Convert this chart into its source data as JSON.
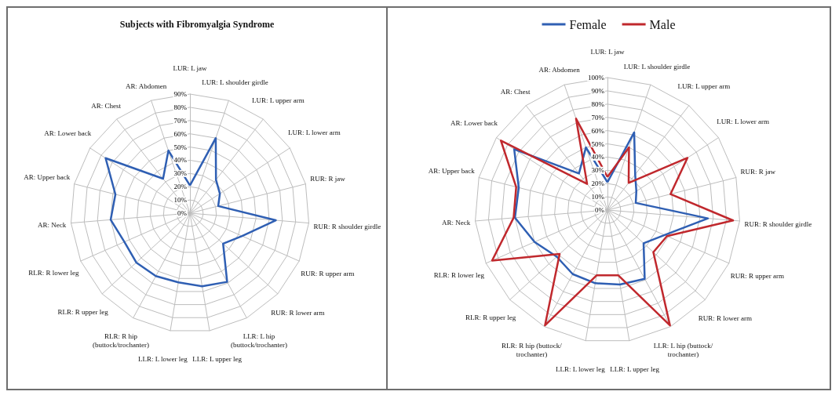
{
  "chart_data": [
    {
      "type": "radar",
      "title": "Subjects with Fibromyalgia Syndrome",
      "categories": [
        "LUR: L jaw",
        "LUR: L shoulder girdle",
        "LUR: L upper arm",
        "LUR: L lower arm",
        "RUR: R jaw",
        "RUR: R shoulder girdle",
        "RUR: R upper arm",
        "RUR: R lower arm",
        "LLR: L hip (buttock/trochanter)",
        "LLR: L upper leg",
        "LLR: L lower leg",
        "RLR: R hip (buttock/trochanter)",
        "RLR: R upper leg",
        "RLR: R lower leg",
        "AR: Neck",
        "AR: Upper back",
        "AR: Lower back",
        "AR: Chest",
        "AR: Abdomen"
      ],
      "series": [
        {
          "color": "#2f5fb3",
          "values": [
            21,
            60,
            32,
            27,
            22,
            65,
            43,
            34,
            59,
            56,
            53,
            54,
            55,
            54,
            60,
            58,
            76,
            33,
            50
          ]
        }
      ],
      "ylim": [
        0,
        90
      ],
      "yticks": [
        {
          "value": 0,
          "label": "0%"
        },
        {
          "value": 10,
          "label": "10%"
        },
        {
          "value": 20,
          "label": "20%"
        },
        {
          "value": 30,
          "label": "30%"
        },
        {
          "value": 40,
          "label": "40%"
        },
        {
          "value": 50,
          "label": "50%"
        },
        {
          "value": 60,
          "label": "60%"
        },
        {
          "value": 70,
          "label": "70%"
        },
        {
          "value": 80,
          "label": "80%"
        },
        {
          "value": 90,
          "label": "90%"
        }
      ],
      "grid": true,
      "marker": "none",
      "line_style": "solid",
      "legend": false
    },
    {
      "type": "radar",
      "categories": [
        "LUR: L jaw",
        "LUR: L shoulder girdle",
        "LUR: L upper arm",
        "LUR: L lower arm",
        "RUR: R jaw",
        "RUR: R shoulder girdle",
        "RUR: R upper arm",
        "RUR: R lower arm",
        "LLR: L hip (buttock/ trochanter)",
        "LLR: L upper leg",
        "LLR: L lower leg",
        "RLR: R hip (buttock/ trochanter)",
        "RLR: R upper leg",
        "RLR: R lower leg",
        "AR: Neck",
        "AR: Upper back",
        "AR: Lower back",
        "AR: Chest",
        "AR: Abdomen"
      ],
      "series": [
        {
          "name": "Female",
          "color": "#2f5fb3",
          "values": [
            21,
            62,
            34,
            26,
            22,
            76,
            47,
            37,
            59,
            57,
            56,
            55,
            52,
            60,
            70,
            69,
            84,
            35,
            50
          ]
        },
        {
          "name": "Male",
          "color": "#c0282d",
          "values": [
            25,
            50,
            26,
            72,
            49,
            95,
            49,
            47,
            99,
            50,
            50,
            99,
            49,
            95,
            71,
            71,
            96,
            25,
            73
          ]
        }
      ],
      "ylim": [
        0,
        100
      ],
      "yticks": [
        {
          "value": 0,
          "label": "0%"
        },
        {
          "value": 10,
          "label": "10%"
        },
        {
          "value": 20,
          "label": "20%"
        },
        {
          "value": 30,
          "label": "30%"
        },
        {
          "value": 40,
          "label": "40%"
        },
        {
          "value": 50,
          "label": "50%"
        },
        {
          "value": 60,
          "label": "60%"
        },
        {
          "value": 70,
          "label": "70%"
        },
        {
          "value": 80,
          "label": "80%"
        },
        {
          "value": 90,
          "label": "90%"
        },
        {
          "value": 100,
          "label": "100%"
        }
      ],
      "grid": true,
      "marker": "none",
      "line_style": "solid",
      "legend": "top"
    }
  ]
}
